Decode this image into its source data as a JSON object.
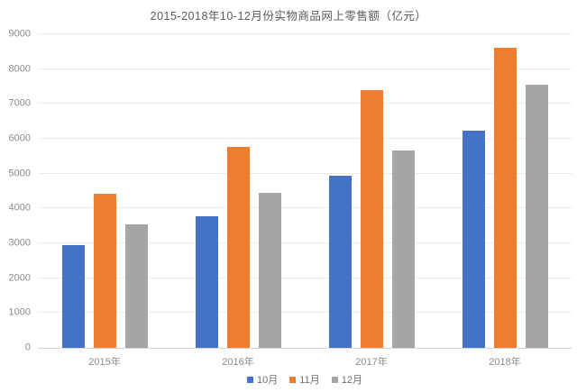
{
  "chart_data": {
    "type": "bar",
    "title": "2015-2018年10-12月份实物商品网上零售额（亿元）",
    "categories": [
      "2015年",
      "2016年",
      "2017年",
      "2018年"
    ],
    "series": [
      {
        "name": "10月",
        "color": "#4472C4",
        "values": [
          2950,
          3770,
          4950,
          6230
        ]
      },
      {
        "name": "11月",
        "color": "#ED7D31",
        "values": [
          4410,
          5760,
          7400,
          8600
        ]
      },
      {
        "name": "12月",
        "color": "#A5A5A5",
        "values": [
          3550,
          4460,
          5660,
          7550
        ]
      }
    ],
    "xlabel": "",
    "ylabel": "",
    "ylim": [
      0,
      9000
    ],
    "y_ticks": [
      0,
      1000,
      2000,
      3000,
      4000,
      5000,
      6000,
      7000,
      8000,
      9000
    ],
    "grid": true,
    "legend_position": "bottom"
  },
  "colors": {
    "background": "#ffffff",
    "gridline": "#ececec",
    "axis_line": "#d6d6d6",
    "title_text": "#595959",
    "tick_text": "#8a8a8a"
  }
}
